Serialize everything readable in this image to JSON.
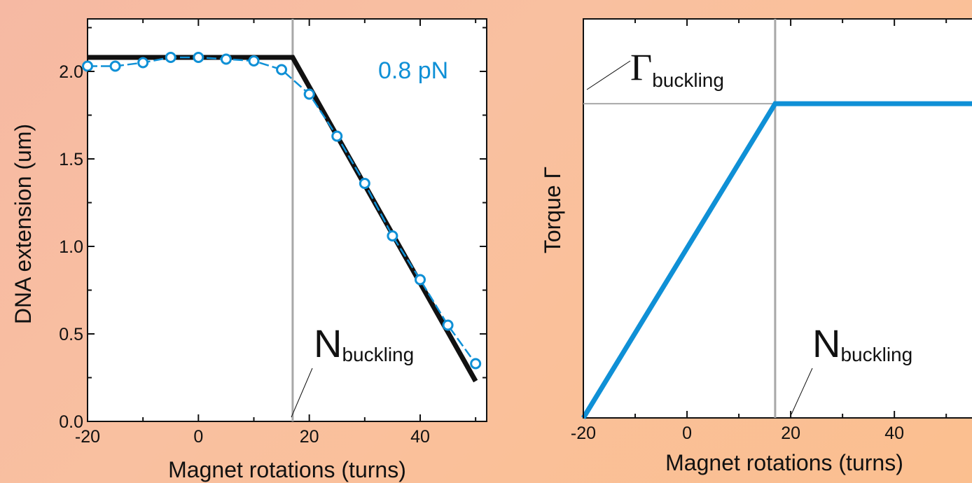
{
  "colors": {
    "background": "#f9bd9d",
    "plot_bg": "#ffffff",
    "series": "#0f90d6",
    "fit": "#111111",
    "guide": "#a8a8a8"
  },
  "chart_data": [
    {
      "type": "scatter",
      "xlabel": "Magnet rotations (turns)",
      "ylabel": "DNA extension (um)",
      "xlim": [
        -20,
        52
      ],
      "ylim": [
        0,
        2.3
      ],
      "x_ticks": [
        "-20",
        "0",
        "20",
        "40"
      ],
      "x_tick_values": [
        -20,
        0,
        20,
        40
      ],
      "y_ticks": [
        "0.0",
        "0.5",
        "1.0",
        "1.5",
        "2.0"
      ],
      "y_tick_values": [
        0,
        0.5,
        1.0,
        1.5,
        2.0
      ],
      "annotation_force": "0.8 pN",
      "annotation_N": "N",
      "annotation_N_sub": "buckling",
      "n_buckling": 17,
      "series": [
        {
          "type": "line+marker",
          "x": [
            -20,
            -15,
            -10,
            -5,
            0,
            5,
            10,
            15,
            20,
            25,
            30,
            35,
            40,
            45,
            50
          ],
          "values": [
            2.03,
            2.03,
            2.05,
            2.08,
            2.08,
            2.07,
            2.06,
            2.01,
            1.87,
            1.63,
            1.36,
            1.06,
            0.81,
            0.55,
            0.33
          ]
        }
      ],
      "fit_line": {
        "x": [
          -20,
          17,
          50
        ],
        "values": [
          2.08,
          2.08,
          0.23
        ]
      }
    },
    {
      "type": "line",
      "xlabel": "Magnet rotations (turns)",
      "ylabel": "Torque Γ",
      "xlim": [
        -20,
        57
      ],
      "ylim": [
        0,
        1.27
      ],
      "x_ticks": [
        "-20",
        "0",
        "20",
        "40"
      ],
      "x_tick_values": [
        -20,
        0,
        20,
        40
      ],
      "annotation_gamma": "Γ",
      "annotation_gamma_sub": "buckling",
      "annotation_N": "N",
      "annotation_N_sub": "buckling",
      "n_buckling": 17,
      "torque_buckling": 1.0,
      "series": [
        {
          "x": [
            -20,
            17,
            57
          ],
          "values": [
            0,
            1.0,
            1.0
          ]
        }
      ]
    }
  ]
}
